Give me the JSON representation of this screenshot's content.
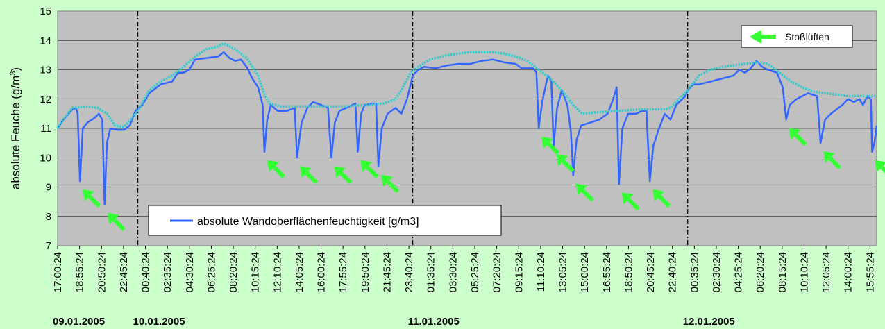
{
  "chart_data": {
    "type": "line",
    "ylabel": "absolute Feuche (g/m",
    "ylabel_sup": "3",
    "ylabel_close": ")",
    "ylim": [
      7,
      15
    ],
    "yticks": [
      7,
      8,
      9,
      10,
      11,
      12,
      13,
      14,
      15
    ],
    "grid": true,
    "x_tick_labels": [
      "17:00:24",
      "18:55:24",
      "20:50:24",
      "22:45:24",
      "00:40:24",
      "02:35:24",
      "04:30:24",
      "06:25:24",
      "08:20:24",
      "10:15:24",
      "12:10:24",
      "14:05:24",
      "16:00:24",
      "17:55:24",
      "19:50:24",
      "21:45:24",
      "23:40:24",
      "01:35:24",
      "03:30:24",
      "05:25:24",
      "07:20:24",
      "09:15:24",
      "11:10:24",
      "13:05:24",
      "15:00:24",
      "16:55:24",
      "18:50:24",
      "20:45:24",
      "22:40:24",
      "00:35:24",
      "02:30:24",
      "04:25:24",
      "06:20:24",
      "08:15:24",
      "10:10:24",
      "12:05:24",
      "14:00:24",
      "15:55:24"
    ],
    "x_start_hour": 17.0,
    "day_labels": [
      {
        "label": "09.01.2005",
        "hour": 17.0
      },
      {
        "label": "10.01.2005",
        "hour": 24.0
      },
      {
        "label": "11.01.2005",
        "hour": 48.0
      },
      {
        "label": "12.01.2005",
        "hour": 72.0
      }
    ],
    "day_boundaries_hour": [
      24.0,
      48.0,
      72.0
    ],
    "x_end_hour": 88.5,
    "series": [
      {
        "name": "absolute Wandoberflächenfeuchtigkeit [g/m3]",
        "color": "#3366ff",
        "style": "solid",
        "points": [
          [
            17.0,
            11.0
          ],
          [
            17.5,
            11.3
          ],
          [
            18.3,
            11.65
          ],
          [
            18.6,
            11.7
          ],
          [
            18.75,
            11.5
          ],
          [
            18.95,
            9.2
          ],
          [
            19.2,
            11.0
          ],
          [
            19.6,
            11.2
          ],
          [
            20.2,
            11.35
          ],
          [
            20.6,
            11.5
          ],
          [
            20.9,
            11.3
          ],
          [
            21.1,
            8.4
          ],
          [
            21.3,
            10.5
          ],
          [
            21.6,
            11.0
          ],
          [
            22.2,
            10.95
          ],
          [
            22.8,
            10.95
          ],
          [
            23.3,
            11.1
          ],
          [
            23.8,
            11.6
          ],
          [
            24.4,
            11.8
          ],
          [
            25.0,
            12.2
          ],
          [
            26.0,
            12.5
          ],
          [
            27.0,
            12.6
          ],
          [
            27.5,
            12.9
          ],
          [
            28.0,
            12.9
          ],
          [
            28.5,
            13.0
          ],
          [
            29.0,
            13.35
          ],
          [
            30.0,
            13.4
          ],
          [
            31.0,
            13.45
          ],
          [
            31.5,
            13.6
          ],
          [
            32.0,
            13.4
          ],
          [
            32.5,
            13.3
          ],
          [
            33.0,
            13.35
          ],
          [
            33.5,
            13.1
          ],
          [
            34.0,
            12.7
          ],
          [
            34.5,
            12.4
          ],
          [
            34.9,
            11.8
          ],
          [
            35.05,
            10.2
          ],
          [
            35.3,
            11.3
          ],
          [
            35.6,
            11.8
          ],
          [
            36.2,
            11.6
          ],
          [
            37.0,
            11.6
          ],
          [
            37.7,
            11.7
          ],
          [
            37.9,
            10.0
          ],
          [
            38.3,
            11.2
          ],
          [
            38.8,
            11.7
          ],
          [
            39.3,
            11.9
          ],
          [
            40.0,
            11.8
          ],
          [
            40.6,
            11.7
          ],
          [
            40.9,
            10.0
          ],
          [
            41.2,
            11.2
          ],
          [
            41.6,
            11.6
          ],
          [
            42.5,
            11.75
          ],
          [
            43.0,
            11.85
          ],
          [
            43.2,
            10.2
          ],
          [
            43.5,
            11.5
          ],
          [
            43.8,
            11.8
          ],
          [
            44.5,
            11.85
          ],
          [
            44.8,
            11.85
          ],
          [
            45.0,
            9.7
          ],
          [
            45.3,
            11.0
          ],
          [
            45.8,
            11.5
          ],
          [
            46.5,
            11.7
          ],
          [
            47.0,
            11.5
          ],
          [
            47.5,
            12.0
          ],
          [
            48.0,
            12.8
          ],
          [
            48.5,
            13.0
          ],
          [
            49.0,
            13.1
          ],
          [
            50.0,
            13.05
          ],
          [
            51.0,
            13.15
          ],
          [
            52.0,
            13.2
          ],
          [
            53.0,
            13.2
          ],
          [
            54.0,
            13.3
          ],
          [
            55.0,
            13.35
          ],
          [
            56.0,
            13.25
          ],
          [
            57.0,
            13.2
          ],
          [
            57.5,
            13.05
          ],
          [
            58.5,
            13.05
          ],
          [
            58.8,
            12.9
          ],
          [
            59.0,
            11.0
          ],
          [
            59.3,
            11.9
          ],
          [
            59.8,
            12.8
          ],
          [
            60.1,
            12.6
          ],
          [
            60.3,
            10.4
          ],
          [
            60.6,
            11.7
          ],
          [
            61.0,
            12.3
          ],
          [
            61.5,
            11.8
          ],
          [
            61.8,
            10.9
          ],
          [
            62.0,
            9.4
          ],
          [
            62.3,
            10.6
          ],
          [
            62.7,
            11.1
          ],
          [
            63.5,
            11.2
          ],
          [
            64.3,
            11.3
          ],
          [
            65.0,
            11.5
          ],
          [
            65.5,
            12.0
          ],
          [
            65.8,
            12.4
          ],
          [
            66.0,
            9.1
          ],
          [
            66.3,
            11.0
          ],
          [
            66.8,
            11.5
          ],
          [
            67.5,
            11.5
          ],
          [
            68.0,
            11.6
          ],
          [
            68.4,
            11.6
          ],
          [
            68.7,
            9.2
          ],
          [
            69.0,
            10.4
          ],
          [
            69.5,
            11.0
          ],
          [
            70.0,
            11.5
          ],
          [
            70.5,
            11.3
          ],
          [
            71.0,
            11.8
          ],
          [
            71.8,
            12.1
          ],
          [
            72.0,
            12.3
          ],
          [
            72.5,
            12.5
          ],
          [
            73.0,
            12.5
          ],
          [
            74.0,
            12.6
          ],
          [
            75.0,
            12.7
          ],
          [
            76.0,
            12.8
          ],
          [
            76.5,
            13.0
          ],
          [
            77.0,
            12.9
          ],
          [
            77.5,
            13.05
          ],
          [
            78.0,
            13.3
          ],
          [
            78.5,
            13.1
          ],
          [
            79.0,
            13.0
          ],
          [
            79.8,
            12.9
          ],
          [
            80.3,
            12.4
          ],
          [
            80.6,
            11.3
          ],
          [
            80.9,
            11.8
          ],
          [
            81.5,
            12.0
          ],
          [
            82.5,
            12.2
          ],
          [
            83.3,
            12.1
          ],
          [
            83.6,
            10.5
          ],
          [
            84.0,
            11.3
          ],
          [
            84.5,
            11.5
          ],
          [
            85.5,
            11.8
          ],
          [
            86.0,
            12.0
          ],
          [
            86.5,
            11.9
          ],
          [
            87.0,
            12.0
          ],
          [
            87.3,
            11.8
          ],
          [
            87.7,
            12.1
          ],
          [
            88.0,
            12.0
          ],
          [
            88.1,
            10.2
          ],
          [
            88.3,
            10.5
          ],
          [
            88.5,
            11.1
          ]
        ]
      },
      {
        "color": "#33cccc",
        "style": "dotted",
        "points": [
          [
            17.0,
            11.0
          ],
          [
            17.5,
            11.3
          ],
          [
            18.3,
            11.7
          ],
          [
            19.5,
            11.75
          ],
          [
            20.5,
            11.7
          ],
          [
            21.3,
            11.5
          ],
          [
            22.0,
            11.1
          ],
          [
            22.8,
            11.05
          ],
          [
            23.5,
            11.35
          ],
          [
            24.0,
            11.6
          ],
          [
            25.0,
            12.3
          ],
          [
            26.0,
            12.6
          ],
          [
            27.0,
            12.8
          ],
          [
            28.0,
            13.1
          ],
          [
            29.0,
            13.45
          ],
          [
            30.0,
            13.7
          ],
          [
            31.0,
            13.8
          ],
          [
            31.5,
            13.9
          ],
          [
            32.5,
            13.7
          ],
          [
            33.5,
            13.4
          ],
          [
            34.5,
            12.8
          ],
          [
            35.0,
            12.2
          ],
          [
            35.5,
            11.85
          ],
          [
            36.5,
            11.75
          ],
          [
            38.0,
            11.75
          ],
          [
            40.0,
            11.75
          ],
          [
            42.0,
            11.75
          ],
          [
            44.0,
            11.8
          ],
          [
            45.5,
            11.85
          ],
          [
            46.5,
            12.0
          ],
          [
            47.0,
            12.3
          ],
          [
            47.8,
            12.9
          ],
          [
            48.5,
            13.1
          ],
          [
            49.5,
            13.35
          ],
          [
            51.0,
            13.5
          ],
          [
            52.0,
            13.55
          ],
          [
            53.0,
            13.6
          ],
          [
            54.0,
            13.6
          ],
          [
            55.0,
            13.6
          ],
          [
            56.0,
            13.55
          ],
          [
            57.0,
            13.45
          ],
          [
            58.0,
            13.3
          ],
          [
            59.0,
            13.0
          ],
          [
            60.0,
            12.7
          ],
          [
            61.0,
            12.3
          ],
          [
            62.0,
            11.8
          ],
          [
            62.8,
            11.5
          ],
          [
            64.0,
            11.55
          ],
          [
            66.0,
            11.6
          ],
          [
            68.0,
            11.65
          ],
          [
            70.0,
            11.65
          ],
          [
            70.5,
            11.7
          ],
          [
            71.0,
            11.9
          ],
          [
            72.0,
            12.3
          ],
          [
            73.0,
            12.8
          ],
          [
            74.0,
            13.0
          ],
          [
            75.0,
            13.1
          ],
          [
            76.0,
            13.15
          ],
          [
            77.0,
            13.2
          ],
          [
            78.0,
            13.25
          ],
          [
            79.0,
            13.2
          ],
          [
            80.0,
            12.9
          ],
          [
            81.0,
            12.6
          ],
          [
            82.0,
            12.4
          ],
          [
            83.0,
            12.25
          ],
          [
            84.0,
            12.2
          ],
          [
            85.0,
            12.15
          ],
          [
            86.0,
            12.1
          ],
          [
            87.0,
            12.1
          ],
          [
            88.5,
            12.1
          ]
        ]
      }
    ],
    "arrow_color": "#33ff33",
    "arrows": [
      [
        18.95,
        9.2
      ],
      [
        21.1,
        8.4
      ],
      [
        35.05,
        10.2
      ],
      [
        37.9,
        10.0
      ],
      [
        40.9,
        10.0
      ],
      [
        43.2,
        10.2
      ],
      [
        45.0,
        9.7
      ],
      [
        59.0,
        11.0
      ],
      [
        60.3,
        10.4
      ],
      [
        62.0,
        9.4
      ],
      [
        66.0,
        9.1
      ],
      [
        68.7,
        9.2
      ],
      [
        80.6,
        11.3
      ],
      [
        83.6,
        10.5
      ],
      [
        88.1,
        10.2
      ]
    ],
    "legend_main": {
      "label": "absolute Wandoberflächenfeuchtigkeit [g/m3]",
      "placement": "lower-left"
    },
    "legend_arrow": {
      "label": "Stoßlüften",
      "placement": "top-right"
    }
  }
}
